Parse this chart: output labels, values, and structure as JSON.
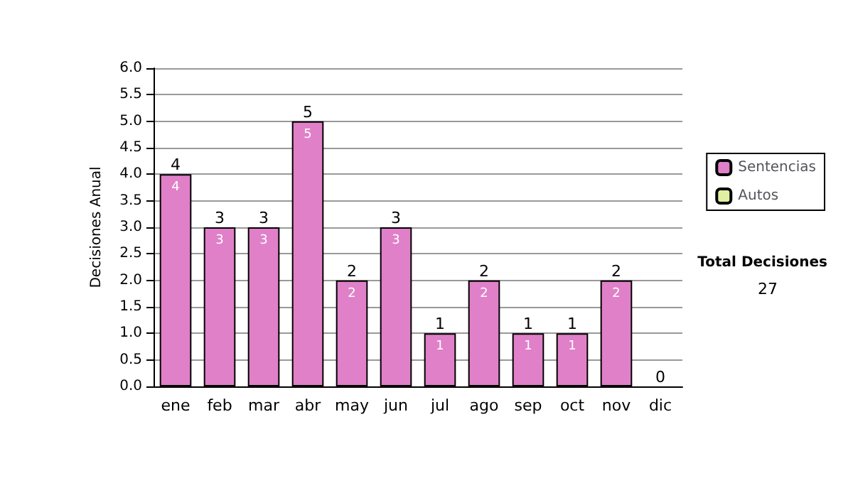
{
  "chart_data": {
    "type": "bar",
    "ylabel": "Decisiones Anual",
    "categories": [
      "ene",
      "feb",
      "mar",
      "abr",
      "may",
      "jun",
      "jul",
      "ago",
      "sep",
      "oct",
      "nov",
      "dic"
    ],
    "series": [
      {
        "name": "Sentencias",
        "color": "#e080c8",
        "values": [
          4,
          3,
          3,
          5,
          2,
          3,
          1,
          2,
          1,
          1,
          2,
          0
        ],
        "value_labels": [
          "4",
          "3",
          "3",
          "5",
          "2",
          "3",
          "1",
          "2",
          "1",
          "1",
          "2",
          null
        ]
      },
      {
        "name": "Autos",
        "color": "#e0f0a0",
        "values": [
          0,
          0,
          0,
          0,
          0,
          0,
          0,
          0,
          0,
          0,
          0,
          0
        ]
      }
    ],
    "stacked": true,
    "totals": [
      "4",
      "3",
      "3",
      "5",
      "2",
      "3",
      "1",
      "2",
      "1",
      "1",
      "2",
      "0"
    ],
    "ylim": [
      0,
      6
    ],
    "yticks": [
      {
        "value": 0,
        "label": "0.0"
      },
      {
        "value": 0.5,
        "label": "0.5"
      },
      {
        "value": 1,
        "label": "1.0"
      },
      {
        "value": 1.5,
        "label": "1.5"
      },
      {
        "value": 2,
        "label": "2.0"
      },
      {
        "value": 2.5,
        "label": "2.5"
      },
      {
        "value": 3,
        "label": "3.0"
      },
      {
        "value": 3.5,
        "label": "3.5"
      },
      {
        "value": 4,
        "label": "4.0"
      },
      {
        "value": 4.5,
        "label": "4.5"
      },
      {
        "value": 5,
        "label": "5.0"
      },
      {
        "value": 5.5,
        "label": "5.5"
      },
      {
        "value": 6,
        "label": "6.0"
      }
    ],
    "grid": "y",
    "legend": "right",
    "annotations": [
      "Total Decisiones",
      "27"
    ]
  }
}
